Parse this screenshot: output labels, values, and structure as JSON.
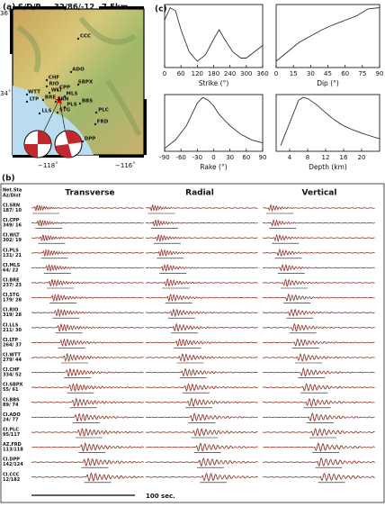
{
  "panel_a": {
    "label": "(a)",
    "mechanism": "S/D/R",
    "solution": "32/86/-12",
    "depth": "7.5km",
    "lat_ticks": [
      "36˚",
      "34˚"
    ],
    "lon_ticks": [
      "−118˚",
      "−116˚"
    ],
    "stations": [
      "CCC",
      "ADO",
      "SBPX",
      "CHF",
      "RIO",
      "CPP",
      "WLT",
      "MLS",
      "WTT",
      "BRE",
      "LTP",
      "SRN",
      "PLS",
      "STG",
      "LLS",
      "BBS",
      "PLC",
      "FRD",
      "DPP"
    ]
  },
  "panel_c": {
    "label": "(c)"
  },
  "chart_data": [
    {
      "type": "line",
      "xlabel": "Strike (°)",
      "x": [
        0,
        20,
        40,
        60,
        90,
        120,
        150,
        180,
        200,
        220,
        250,
        280,
        300,
        330,
        360
      ],
      "values": [
        0.75,
        0.95,
        0.9,
        0.6,
        0.25,
        0.1,
        0.2,
        0.45,
        0.6,
        0.45,
        0.25,
        0.15,
        0.15,
        0.25,
        0.35
      ],
      "color": "#333333",
      "xlim": [
        0,
        360
      ],
      "xticks": [
        0,
        60,
        120,
        180,
        240,
        300,
        360
      ],
      "ylim": [
        0,
        1
      ]
    },
    {
      "type": "line",
      "xlabel": "Dip (°)",
      "x": [
        0,
        10,
        20,
        30,
        40,
        50,
        60,
        70,
        80,
        90
      ],
      "values": [
        0.1,
        0.25,
        0.4,
        0.5,
        0.6,
        0.68,
        0.75,
        0.82,
        0.93,
        0.95
      ],
      "color": "#333333",
      "xlim": [
        0,
        90
      ],
      "xticks": [
        0,
        15,
        30,
        45,
        60,
        75,
        90
      ],
      "ylim": [
        0,
        1
      ]
    },
    {
      "type": "line",
      "xlabel": "Rake (°)",
      "x": [
        -90,
        -70,
        -50,
        -30,
        -20,
        -10,
        0,
        10,
        30,
        50,
        70,
        90
      ],
      "values": [
        0.05,
        0.2,
        0.45,
        0.85,
        0.95,
        0.9,
        0.8,
        0.65,
        0.45,
        0.3,
        0.2,
        0.15
      ],
      "color": "#333333",
      "xlim": [
        -90,
        90
      ],
      "xticks": [
        -90,
        -60,
        -30,
        0,
        30,
        60,
        90
      ],
      "ylim": [
        0,
        1
      ]
    },
    {
      "type": "line",
      "xlabel": "Depth (km)",
      "x": [
        2,
        4,
        6,
        7,
        8,
        10,
        12,
        14,
        16,
        18,
        20,
        22,
        24
      ],
      "values": [
        0.1,
        0.5,
        0.9,
        0.95,
        0.93,
        0.82,
        0.68,
        0.55,
        0.45,
        0.38,
        0.32,
        0.27,
        0.22
      ],
      "color": "#333333",
      "xlim": [
        1,
        24
      ],
      "xticks": [
        4,
        8,
        12,
        16,
        20
      ],
      "ylim": [
        0,
        1
      ]
    }
  ],
  "panel_b": {
    "label": "(b)",
    "header": [
      "Net.Sta",
      "Az/Dist"
    ],
    "columns": [
      "Transverse",
      "Radial",
      "Vertical"
    ],
    "scale": "100 sec.",
    "stations": [
      {
        "name": "CI.SRN",
        "azdist": "187/ 10"
      },
      {
        "name": "CI.CPP",
        "azdist": "349/ 16"
      },
      {
        "name": "CI.WLT",
        "azdist": "302/ 19"
      },
      {
        "name": "CI.PLS",
        "azdist": "131/ 21"
      },
      {
        "name": "CI.MLS",
        "azdist": "64/ 22"
      },
      {
        "name": "CI.BRE",
        "azdist": "237/ 23"
      },
      {
        "name": "CI.STG",
        "azdist": "179/ 28"
      },
      {
        "name": "CI.RIO",
        "azdist": "319/ 28"
      },
      {
        "name": "CI.LLS",
        "azdist": "211/ 30"
      },
      {
        "name": "CI.LTP",
        "azdist": "264/ 37"
      },
      {
        "name": "CI.WTT",
        "azdist": "279/ 44"
      },
      {
        "name": "CI.CHF",
        "azdist": "334/ 52"
      },
      {
        "name": "CI.SBPX",
        "azdist": "55/ 61"
      },
      {
        "name": "CI.BBS",
        "azdist": "89/ 74"
      },
      {
        "name": "CI.ADO",
        "azdist": "24/ 77"
      },
      {
        "name": "CI.PLC",
        "azdist": "95/117"
      },
      {
        "name": "AZ.FRD",
        "azdist": "113/118"
      },
      {
        "name": "CI.DPP",
        "azdist": "142/124"
      },
      {
        "name": "CI.CCC",
        "azdist": "12/182"
      }
    ]
  }
}
